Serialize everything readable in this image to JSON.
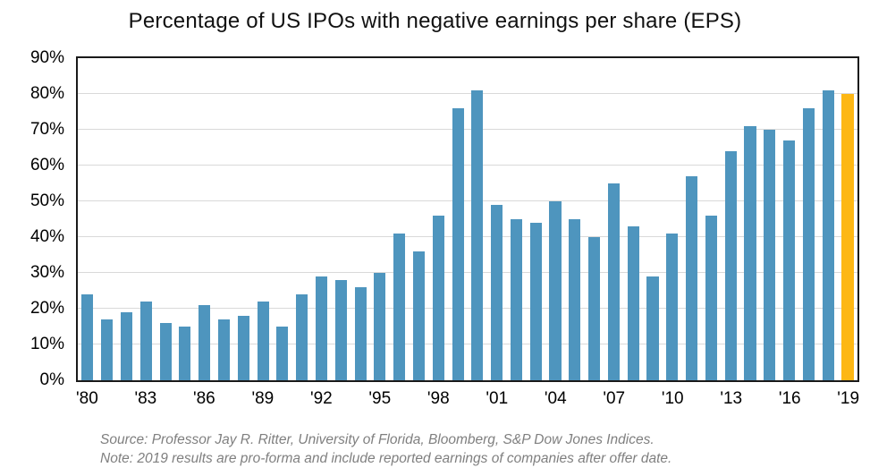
{
  "footer": {
    "source": "Source: Professor Jay R. Ritter, University of Florida, Bloomberg, S&P Dow Jones Indices.",
    "note": "Note: 2019 results are pro-forma and include reported earnings of companies after offer date."
  },
  "colors": {
    "bar_blue": "#4E95BE",
    "bar_highlight": "#FDB714",
    "gridline": "#D9D9D9",
    "axis_border": "#1a1a1a",
    "footer_text": "#7F7F7F"
  },
  "chart_data": {
    "type": "bar",
    "title": "Percentage of US IPOs with negative earnings per share (EPS)",
    "x": [
      1980,
      1981,
      1982,
      1983,
      1984,
      1985,
      1986,
      1987,
      1988,
      1989,
      1990,
      1991,
      1992,
      1993,
      1994,
      1995,
      1996,
      1997,
      1998,
      1999,
      2000,
      2001,
      2002,
      2003,
      2004,
      2005,
      2006,
      2007,
      2008,
      2009,
      2010,
      2011,
      2012,
      2013,
      2014,
      2015,
      2016,
      2017,
      2018,
      2019
    ],
    "values": [
      24,
      17,
      19,
      22,
      16,
      15,
      21,
      17,
      18,
      22,
      15,
      24,
      29,
      28,
      26,
      30,
      41,
      36,
      46,
      76,
      81,
      49,
      45,
      44,
      50,
      45,
      40,
      55,
      43,
      29,
      41,
      57,
      46,
      64,
      71,
      70,
      67,
      76,
      81,
      80
    ],
    "highlight_x": 2019,
    "xlabel": "",
    "ylabel": "",
    "ylim": [
      0,
      90
    ],
    "y_ticks": [
      0,
      10,
      20,
      30,
      40,
      50,
      60,
      70,
      80,
      90
    ],
    "y_tick_labels": [
      "0%",
      "10%",
      "20%",
      "30%",
      "40%",
      "50%",
      "60%",
      "70%",
      "80%",
      "90%"
    ],
    "x_tick_labels": [
      "'80",
      "'83",
      "'86",
      "'89",
      "'92",
      "'95",
      "'98",
      "'01",
      "'04",
      "'07",
      "'10",
      "'13",
      "'16",
      "'19"
    ],
    "x_tick_step": 3,
    "grid": true,
    "legend": "none"
  }
}
